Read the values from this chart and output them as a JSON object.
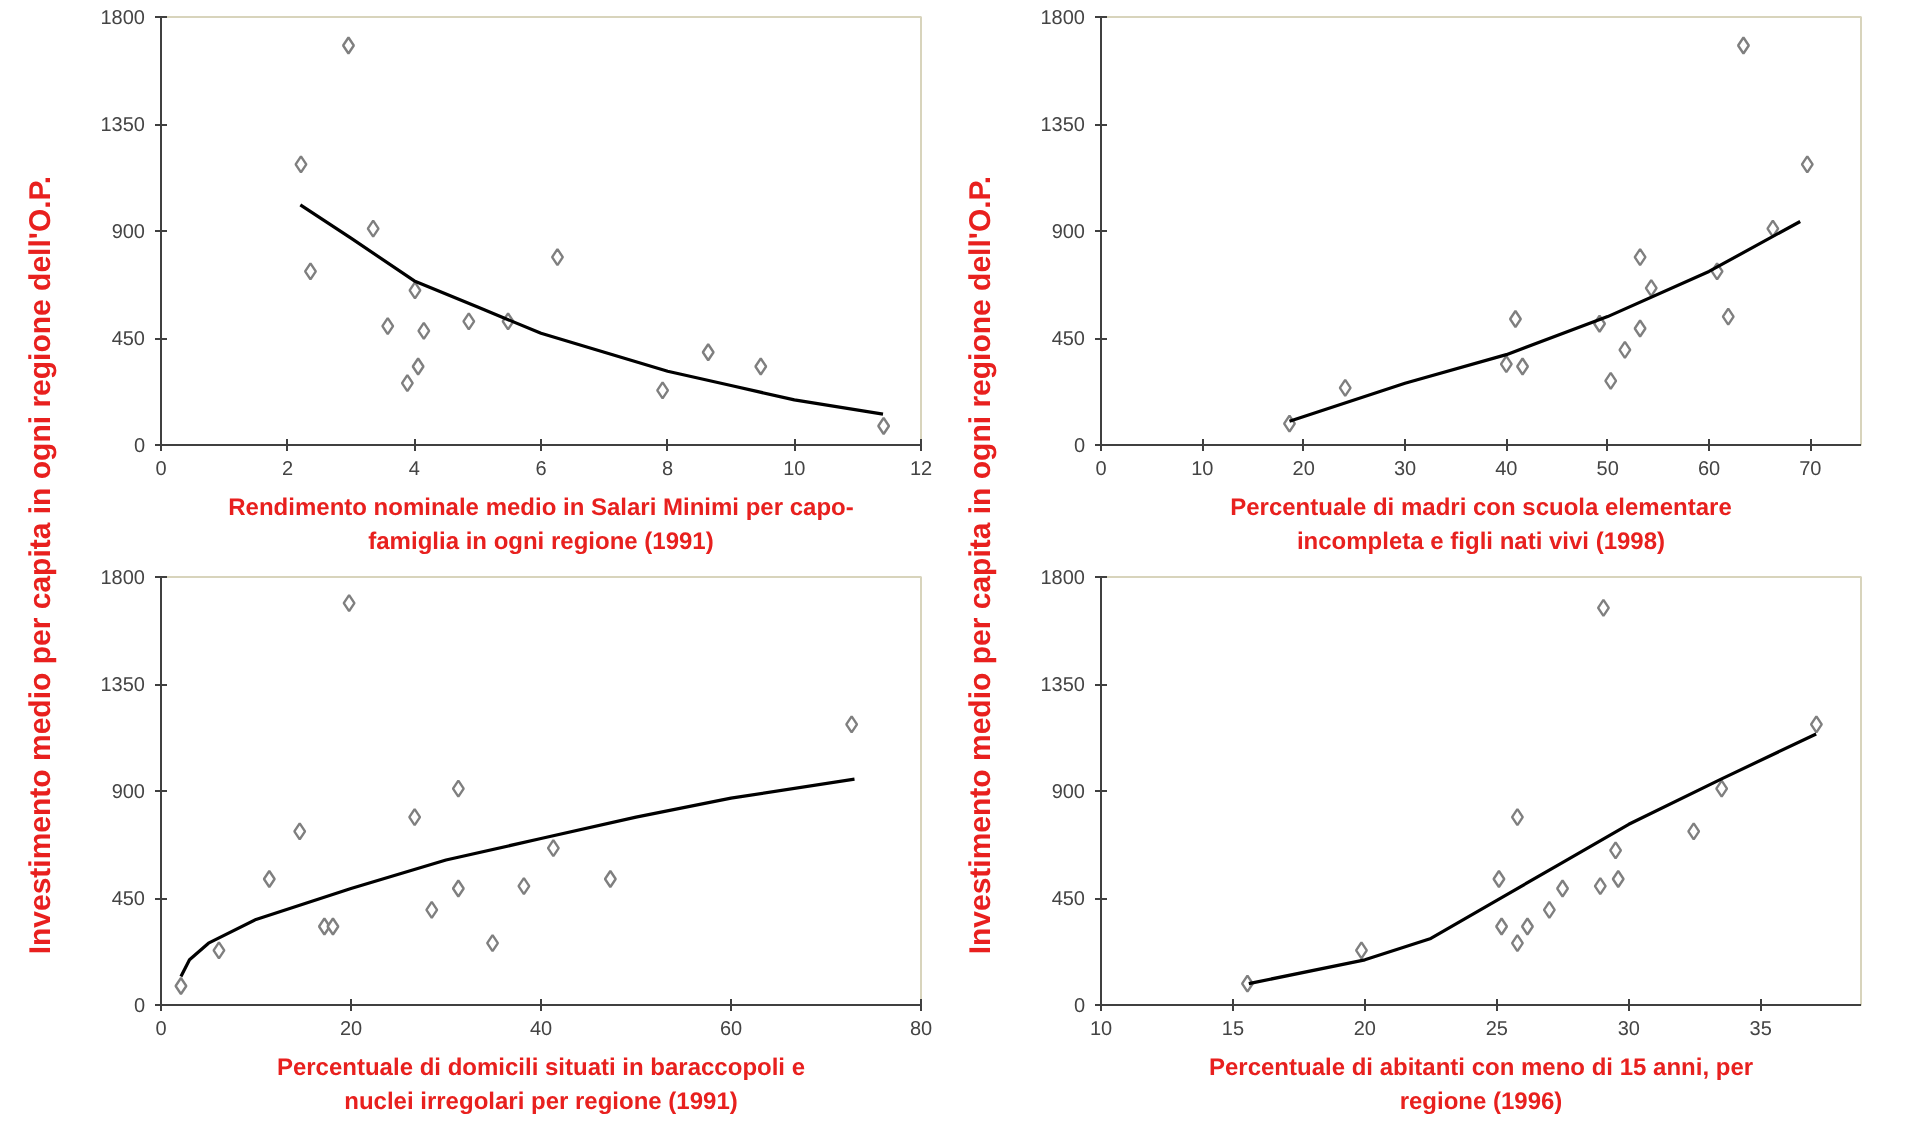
{
  "chart_data": [
    {
      "type": "scatter",
      "xlabel": "Rendimento nominale medio in Salari Minimi per capo-\nfamiglia in ogni regione (1991)",
      "ylabel": "Investimento medio per capita  in ogni regione dell'O.P.",
      "xlim": [
        0,
        12
      ],
      "xticks": [
        0,
        2,
        4,
        6,
        8,
        10,
        12
      ],
      "ylim": [
        0,
        1800
      ],
      "yticks": [
        0,
        450,
        900,
        1350,
        1800
      ],
      "series": [
        {
          "marker": "diamond",
          "color": "#7f7f7f",
          "x": [
            2.21,
            2.96,
            3.35,
            2.36,
            3.58,
            4.01,
            4.15,
            4.06,
            3.89,
            4.86,
            5.48,
            6.26,
            7.92,
            8.64,
            9.47,
            11.41
          ],
          "values": [
            1180,
            1680,
            910,
            730,
            500,
            650,
            480,
            330,
            260,
            520,
            520,
            790,
            230,
            390,
            330,
            80
          ]
        },
        {
          "type": "line",
          "color": "#000000",
          "x": [
            2.2,
            3,
            4,
            5,
            6,
            7,
            8,
            9,
            10,
            11.4
          ],
          "values": [
            1010,
            870,
            690,
            580,
            470,
            390,
            310,
            250,
            190,
            130
          ]
        }
      ]
    },
    {
      "type": "scatter",
      "xlabel": "Percentuale di madri con scuola elementare\nincompleta e figli nati vivi (1998)",
      "ylabel": "Investimento medio per capita  in ogni regione dell'O.P.",
      "xlim": [
        0,
        75
      ],
      "xticks": [
        0,
        10,
        20,
        30,
        40,
        50,
        60,
        70
      ],
      "ylim": [
        0,
        1800
      ],
      "yticks": [
        0,
        450,
        900,
        1350,
        1800
      ],
      "series": [
        {
          "marker": "diamond",
          "color": "#7f7f7f",
          "x": [
            18.6,
            24.1,
            40.0,
            41.6,
            40.9,
            49.2,
            50.3,
            51.7,
            53.2,
            53.2,
            54.3,
            60.8,
            61.9,
            63.4,
            66.3,
            69.7
          ],
          "values": [
            90,
            240,
            340,
            330,
            530,
            510,
            270,
            400,
            490,
            790,
            660,
            730,
            540,
            1680,
            910,
            1180
          ]
        },
        {
          "type": "line",
          "color": "#000000",
          "x": [
            18.6,
            30,
            40,
            50,
            60,
            69
          ],
          "values": [
            100,
            260,
            380,
            540,
            730,
            940
          ]
        }
      ]
    },
    {
      "type": "scatter",
      "xlabel": "Percentuale di domicili situati in baraccopoli e\nnuclei irregolari per regione (1991)",
      "xlim": [
        0,
        80
      ],
      "xticks": [
        0,
        20,
        40,
        60,
        80
      ],
      "ylim": [
        0,
        1800
      ],
      "yticks": [
        0,
        450,
        900,
        1350,
        1800
      ],
      "series": [
        {
          "marker": "diamond",
          "color": "#7f7f7f",
          "x": [
            2.1,
            6.1,
            11.4,
            14.6,
            17.2,
            18.1,
            19.8,
            26.7,
            28.5,
            31.3,
            31.3,
            34.9,
            38.2,
            41.3,
            47.3,
            72.7
          ],
          "values": [
            80,
            230,
            530,
            730,
            330,
            330,
            1690,
            790,
            400,
            910,
            490,
            260,
            500,
            660,
            530,
            1180
          ]
        },
        {
          "type": "line",
          "color": "#000000",
          "x": [
            2.1,
            3,
            5,
            10,
            20,
            30,
            40,
            50,
            60,
            73
          ],
          "values": [
            120,
            190,
            260,
            360,
            490,
            610,
            700,
            790,
            870,
            950
          ]
        }
      ]
    },
    {
      "type": "scatter",
      "xlabel": "Percentuale di abitanti con meno di 15 anni, per\nregione (1996)",
      "xlim": [
        10,
        38.8
      ],
      "xticks": [
        10,
        15,
        20,
        25,
        30,
        35
      ],
      "ylim": [
        0,
        1800
      ],
      "yticks": [
        0,
        450,
        900,
        1350,
        1800
      ],
      "series": [
        {
          "marker": "diamond",
          "color": "#7f7f7f",
          "x": [
            15.55,
            19.87,
            25.08,
            25.18,
            25.78,
            25.78,
            26.16,
            26.99,
            27.49,
            28.92,
            29.04,
            29.5,
            29.6,
            32.46,
            33.52,
            37.11
          ],
          "values": [
            90,
            230,
            530,
            330,
            790,
            260,
            330,
            400,
            490,
            500,
            1670,
            650,
            530,
            730,
            910,
            1180
          ]
        },
        {
          "type": "line",
          "color": "#000000",
          "x": [
            15.6,
            20,
            22.5,
            25,
            27.5,
            30,
            33.5,
            37.1
          ],
          "values": [
            90,
            190,
            280,
            440,
            600,
            760,
            950,
            1140
          ]
        }
      ]
    }
  ]
}
